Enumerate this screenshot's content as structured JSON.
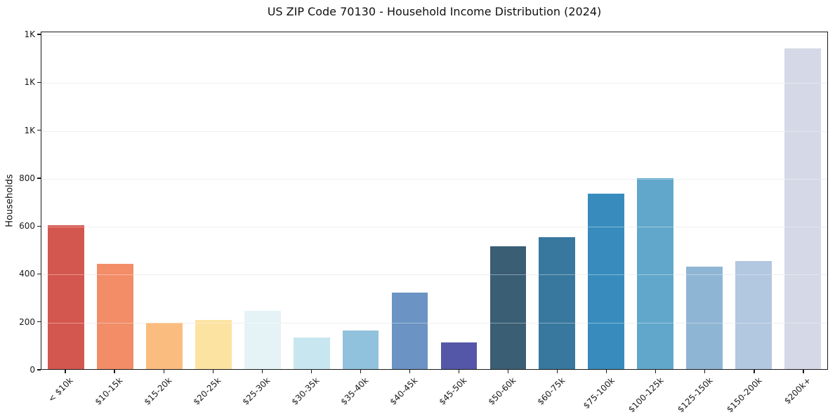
{
  "chart_data": {
    "type": "bar",
    "title": "US ZIP Code 70130 - Household Income Distribution (2024)",
    "xlabel": "",
    "ylabel": "Households",
    "categories": [
      "< $10k",
      "$10-15k",
      "$15-20k",
      "$20-25k",
      "$25-30k",
      "$30-35k",
      "$35-40k",
      "$40-45k",
      "$45-50k",
      "$50-60k",
      "$60-75k",
      "$75-100k",
      "$100-125k",
      "$125-150k",
      "$150-200k",
      "$200k+"
    ],
    "values": [
      603,
      440,
      194,
      206,
      243,
      133,
      162,
      322,
      112,
      515,
      553,
      735,
      800,
      430,
      453,
      1345
    ],
    "bar_colors": [
      "#d3574e",
      "#f28d68",
      "#fabd7f",
      "#fce3a2",
      "#e5f2f6",
      "#c8e6f0",
      "#91c2dd",
      "#6b93c4",
      "#5457a7",
      "#3a5e74",
      "#38789e",
      "#388cbd",
      "#61a7cb",
      "#8fb5d4",
      "#b2c7e0",
      "#d5d8e6"
    ],
    "ylim": [
      0,
      1412
    ],
    "yticks": [
      {
        "value": 0,
        "label": "0"
      },
      {
        "value": 200,
        "label": "200"
      },
      {
        "value": 400,
        "label": "400"
      },
      {
        "value": 600,
        "label": "600"
      },
      {
        "value": 800,
        "label": "800"
      },
      {
        "value": 1000,
        "label": "1K"
      },
      {
        "value": 1200,
        "label": "1K"
      },
      {
        "value": 1400,
        "label": "1K"
      }
    ],
    "grid": "horizontal",
    "legend": "none"
  },
  "colors": {
    "background": "#ffffff",
    "spine": "#1a1a1a",
    "gridline": "#e6e6e6",
    "text": "#111111"
  }
}
